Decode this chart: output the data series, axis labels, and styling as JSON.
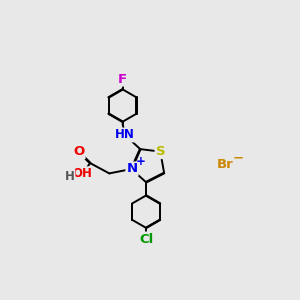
{
  "bg_color": "#e8e8e8",
  "atom_colors": {
    "C": "#000000",
    "N": "#0000ee",
    "O": "#ee0000",
    "S": "#bbbb00",
    "F": "#cc00cc",
    "Cl": "#009900",
    "Br": "#cc8800",
    "H": "#555555"
  },
  "bond_color": "#000000",
  "bond_width": 1.4,
  "font_size": 8.5
}
